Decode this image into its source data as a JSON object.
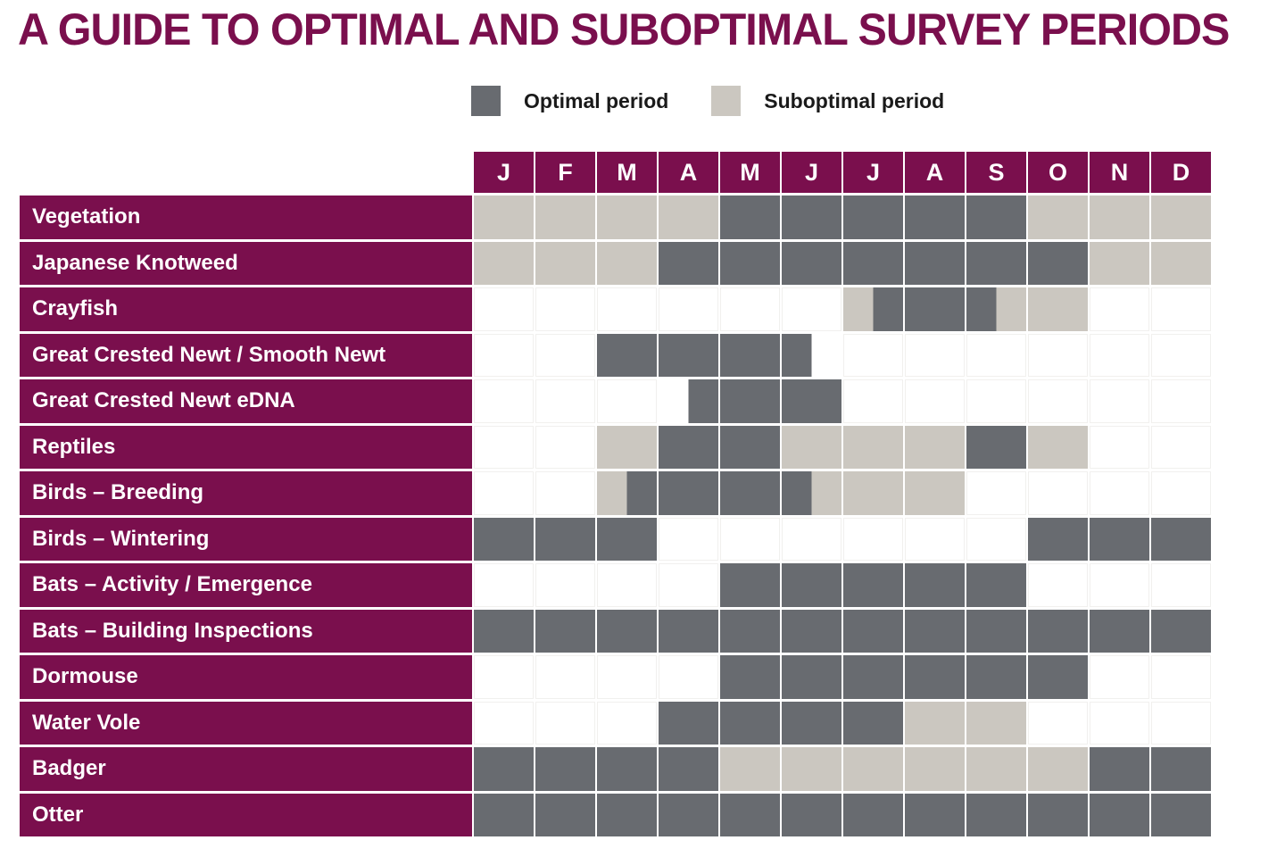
{
  "title": "A GUIDE TO OPTIMAL AND SUBOPTIMAL SURVEY PERIODS",
  "legend": {
    "optimal_label": "Optimal period",
    "suboptimal_label": "Suboptimal period"
  },
  "colors": {
    "brand_maroon": "#7A0F4D",
    "optimal": "#686B70",
    "suboptimal": "#CBC7C0",
    "empty": "#FFFFFF"
  },
  "chart_data": {
    "type": "heatmap",
    "title": "A GUIDE TO OPTIMAL AND SUBOPTIMAL SURVEY PERIODS",
    "x_labels": [
      "J",
      "F",
      "M",
      "A",
      "M",
      "J",
      "J",
      "A",
      "S",
      "O",
      "N",
      "D"
    ],
    "legend_entries": [
      "Optimal period",
      "Suboptimal period"
    ],
    "state_key": {
      "O": "optimal period",
      "S": "suboptimal period",
      "": "no survey period",
      "X|Y": "split month: first half = X, second half = Y (empty side = no period)"
    },
    "rows": [
      {
        "label": "Vegetation",
        "cells": [
          "S",
          "S",
          "S",
          "S",
          "O",
          "O",
          "O",
          "O",
          "O",
          "S",
          "S",
          "S"
        ]
      },
      {
        "label": "Japanese Knotweed",
        "cells": [
          "S",
          "S",
          "S",
          "O",
          "O",
          "O",
          "O",
          "O",
          "O",
          "O",
          "S",
          "S"
        ]
      },
      {
        "label": "Crayfish",
        "cells": [
          "",
          "",
          "",
          "",
          "",
          "",
          "S|O",
          "O",
          "O|S",
          "S",
          "",
          ""
        ]
      },
      {
        "label": "Great Crested Newt / Smooth Newt",
        "cells": [
          "",
          "",
          "O",
          "O",
          "O",
          "O|",
          "",
          "",
          "",
          "",
          "",
          ""
        ]
      },
      {
        "label": "Great Crested Newt eDNA",
        "cells": [
          "",
          "",
          "",
          "|O",
          "O",
          "O",
          "",
          "",
          "",
          "",
          "",
          ""
        ]
      },
      {
        "label": "Reptiles",
        "cells": [
          "",
          "",
          "S",
          "O",
          "O",
          "S",
          "S",
          "S",
          "O",
          "S",
          "",
          ""
        ]
      },
      {
        "label": "Birds – Breeding",
        "cells": [
          "",
          "",
          "S|O",
          "O",
          "O",
          "O|S",
          "S",
          "S",
          "",
          "",
          "",
          ""
        ]
      },
      {
        "label": "Birds – Wintering",
        "cells": [
          "O",
          "O",
          "O",
          "",
          "",
          "",
          "",
          "",
          "",
          "O",
          "O",
          "O"
        ]
      },
      {
        "label": "Bats – Activity / Emergence",
        "cells": [
          "",
          "",
          "",
          "",
          "O",
          "O",
          "O",
          "O",
          "O",
          "",
          "",
          ""
        ]
      },
      {
        "label": "Bats – Building Inspections",
        "cells": [
          "O",
          "O",
          "O",
          "O",
          "O",
          "O",
          "O",
          "O",
          "O",
          "O",
          "O",
          "O"
        ]
      },
      {
        "label": "Dormouse",
        "cells": [
          "",
          "",
          "",
          "",
          "O",
          "O",
          "O",
          "O",
          "O",
          "O",
          "",
          ""
        ]
      },
      {
        "label": "Water Vole",
        "cells": [
          "",
          "",
          "",
          "O",
          "O",
          "O",
          "O",
          "S",
          "S",
          "",
          "",
          ""
        ]
      },
      {
        "label": "Badger",
        "cells": [
          "O",
          "O",
          "O",
          "O",
          "S",
          "S",
          "S",
          "S",
          "S",
          "S",
          "O",
          "O"
        ]
      },
      {
        "label": "Otter",
        "cells": [
          "O",
          "O",
          "O",
          "O",
          "O",
          "O",
          "O",
          "O",
          "O",
          "O",
          "O",
          "O"
        ]
      }
    ]
  }
}
